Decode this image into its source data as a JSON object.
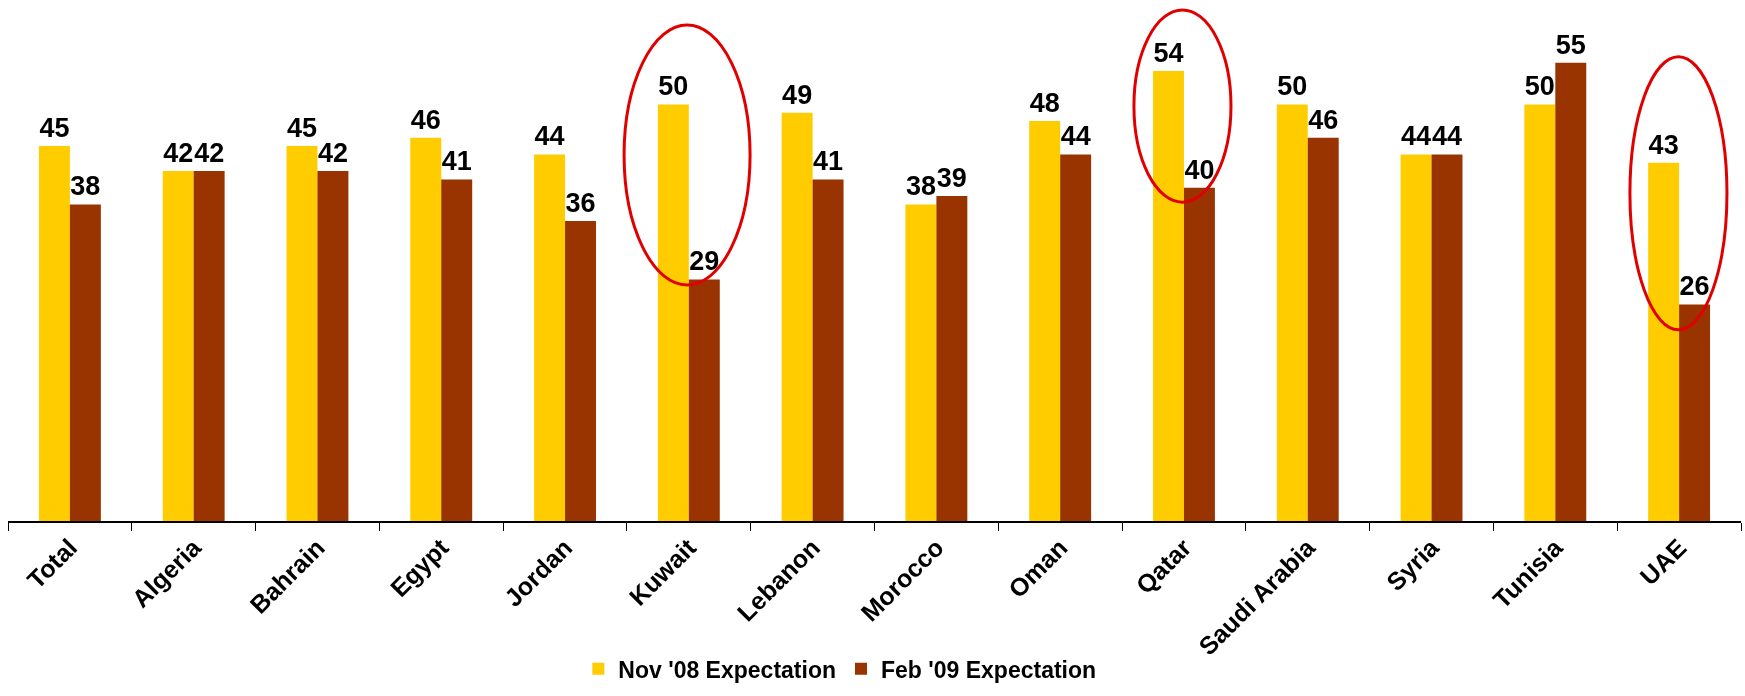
{
  "chart_data": {
    "type": "bar",
    "categories": [
      "Total",
      "Algeria",
      "Bahrain",
      "Egypt",
      "Jordan",
      "Kuwait",
      "Lebanon",
      "Morocco",
      "Oman",
      "Qatar",
      "Saudi Arabia",
      "Syria",
      "Tunisia",
      "UAE"
    ],
    "series": [
      {
        "name": "Nov '08 Expectation",
        "color": "#ffcc00",
        "values": [
          45,
          42,
          45,
          46,
          44,
          50,
          49,
          38,
          48,
          54,
          50,
          44,
          50,
          43
        ]
      },
      {
        "name": "Feb '09 Expectation",
        "color": "#993300",
        "values": [
          38,
          42,
          42,
          41,
          36,
          29,
          41,
          39,
          44,
          40,
          46,
          44,
          55,
          26
        ]
      }
    ],
    "data_labels": true,
    "legend": "bottom"
  }
}
